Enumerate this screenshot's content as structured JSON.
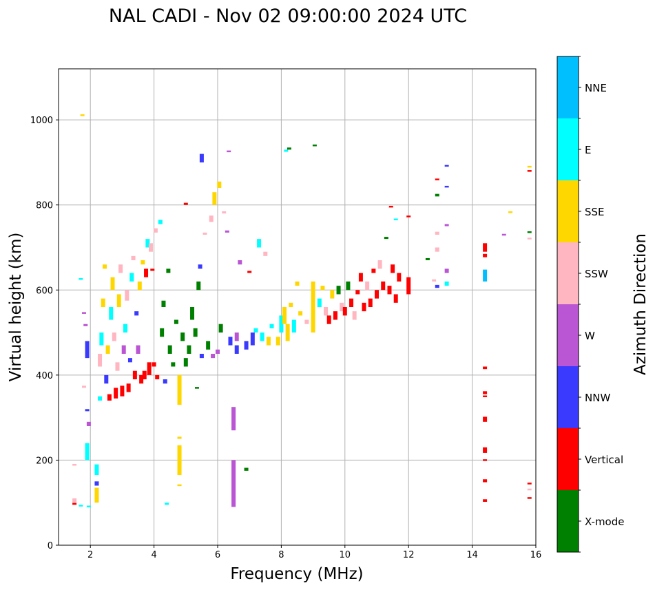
{
  "chart_data": {
    "type": "scatter",
    "title": "NAL CADI - Nov 02 09:00:00 2024 UTC",
    "xlabel": "Frequency (MHz)",
    "ylabel": "Virtual height (km)",
    "xlim": [
      1,
      16
    ],
    "ylim": [
      0,
      1120
    ],
    "xticks": [
      2,
      4,
      6,
      8,
      10,
      12,
      14,
      16
    ],
    "yticks": [
      0,
      200,
      400,
      600,
      800,
      1000
    ],
    "grid": true,
    "colorbar": {
      "label": "Azimuth Direction",
      "placement": "right",
      "categories": [
        "X-mode",
        "Vertical",
        "NNW",
        "W",
        "SSW",
        "SSE",
        "E",
        "NNE"
      ],
      "colors": [
        "#008000",
        "#ff0000",
        "#3a3aff",
        "#ba55d3",
        "#ffb6c1",
        "#ffd700",
        "#00ffff",
        "#00bfff"
      ]
    },
    "segment_format": [
      "freq_mhz",
      "height_low_km",
      "height_high_km",
      "direction_index"
    ],
    "segments": [
      [
        1.5,
        95,
        100,
        1
      ],
      [
        1.5,
        102,
        110,
        4
      ],
      [
        1.5,
        188,
        191,
        4
      ],
      [
        1.7,
        92,
        95,
        6
      ],
      [
        1.75,
        1010,
        1013,
        5
      ],
      [
        1.7,
        625,
        628,
        6
      ],
      [
        1.95,
        90,
        93,
        6
      ],
      [
        1.9,
        200,
        240,
        6
      ],
      [
        1.95,
        280,
        290,
        3
      ],
      [
        1.9,
        315,
        320,
        2
      ],
      [
        1.9,
        440,
        480,
        2
      ],
      [
        1.85,
        515,
        520,
        3
      ],
      [
        1.8,
        545,
        548,
        3
      ],
      [
        1.8,
        370,
        375,
        4
      ],
      [
        2.2,
        100,
        135,
        5
      ],
      [
        2.2,
        140,
        150,
        2
      ],
      [
        2.2,
        165,
        190,
        6
      ],
      [
        2.3,
        340,
        350,
        6
      ],
      [
        2.3,
        420,
        450,
        4
      ],
      [
        2.35,
        470,
        500,
        6
      ],
      [
        2.4,
        560,
        580,
        5
      ],
      [
        2.45,
        650,
        660,
        5
      ],
      [
        2.5,
        380,
        400,
        2
      ],
      [
        2.55,
        450,
        470,
        5
      ],
      [
        2.6,
        340,
        355,
        1
      ],
      [
        2.65,
        530,
        560,
        6
      ],
      [
        2.7,
        600,
        630,
        5
      ],
      [
        2.75,
        480,
        500,
        4
      ],
      [
        2.8,
        345,
        370,
        1
      ],
      [
        2.85,
        410,
        430,
        4
      ],
      [
        2.9,
        560,
        590,
        5
      ],
      [
        2.95,
        640,
        660,
        4
      ],
      [
        3.0,
        350,
        375,
        1
      ],
      [
        3.05,
        450,
        470,
        3
      ],
      [
        3.1,
        500,
        520,
        6
      ],
      [
        3.15,
        575,
        600,
        4
      ],
      [
        3.2,
        360,
        380,
        1
      ],
      [
        3.25,
        430,
        440,
        2
      ],
      [
        3.3,
        620,
        640,
        6
      ],
      [
        3.35,
        670,
        680,
        4
      ],
      [
        3.4,
        390,
        410,
        1
      ],
      [
        3.45,
        540,
        550,
        2
      ],
      [
        3.5,
        450,
        470,
        3
      ],
      [
        3.55,
        600,
        620,
        5
      ],
      [
        3.6,
        380,
        400,
        1
      ],
      [
        3.65,
        660,
        670,
        5
      ],
      [
        3.7,
        390,
        410,
        1
      ],
      [
        3.75,
        630,
        650,
        1
      ],
      [
        3.8,
        700,
        720,
        6
      ],
      [
        3.85,
        400,
        430,
        1
      ],
      [
        3.9,
        690,
        710,
        4
      ],
      [
        3.95,
        645,
        650,
        1
      ],
      [
        4.0,
        420,
        430,
        1
      ],
      [
        4.05,
        735,
        745,
        4
      ],
      [
        4.1,
        390,
        400,
        1
      ],
      [
        4.2,
        755,
        765,
        6
      ],
      [
        4.25,
        490,
        510,
        0
      ],
      [
        4.3,
        560,
        575,
        0
      ],
      [
        4.35,
        380,
        390,
        2
      ],
      [
        4.4,
        95,
        100,
        6
      ],
      [
        4.45,
        640,
        650,
        0
      ],
      [
        4.5,
        450,
        470,
        0
      ],
      [
        4.6,
        420,
        430,
        0
      ],
      [
        4.7,
        520,
        530,
        0
      ],
      [
        4.8,
        330,
        400,
        5
      ],
      [
        4.8,
        140,
        143,
        5
      ],
      [
        4.8,
        165,
        235,
        5
      ],
      [
        4.8,
        250,
        255,
        5
      ],
      [
        4.9,
        480,
        500,
        0
      ],
      [
        5.0,
        420,
        440,
        0
      ],
      [
        5.0,
        800,
        805,
        1
      ],
      [
        5.1,
        450,
        470,
        0
      ],
      [
        5.2,
        530,
        560,
        0
      ],
      [
        5.3,
        490,
        510,
        0
      ],
      [
        5.35,
        370,
        372,
        0
      ],
      [
        5.4,
        600,
        620,
        0
      ],
      [
        5.45,
        650,
        660,
        2
      ],
      [
        5.5,
        440,
        450,
        2
      ],
      [
        5.5,
        900,
        920,
        2
      ],
      [
        5.6,
        730,
        735,
        4
      ],
      [
        5.7,
        460,
        480,
        0
      ],
      [
        5.8,
        760,
        775,
        4
      ],
      [
        5.85,
        440,
        450,
        3
      ],
      [
        5.9,
        800,
        830,
        5
      ],
      [
        6.0,
        450,
        460,
        3
      ],
      [
        6.05,
        840,
        855,
        5
      ],
      [
        6.1,
        500,
        520,
        0
      ],
      [
        6.2,
        780,
        785,
        4
      ],
      [
        6.3,
        735,
        740,
        3
      ],
      [
        6.35,
        925,
        928,
        3
      ],
      [
        6.4,
        470,
        490,
        2
      ],
      [
        6.5,
        90,
        200,
        3
      ],
      [
        6.5,
        270,
        325,
        3
      ],
      [
        6.6,
        450,
        470,
        2
      ],
      [
        6.6,
        480,
        500,
        3
      ],
      [
        6.7,
        660,
        670,
        3
      ],
      [
        6.9,
        175,
        182,
        0
      ],
      [
        6.9,
        460,
        480,
        2
      ],
      [
        7.0,
        640,
        645,
        1
      ],
      [
        7.1,
        470,
        500,
        2
      ],
      [
        7.2,
        500,
        510,
        6
      ],
      [
        7.3,
        700,
        720,
        6
      ],
      [
        7.4,
        480,
        500,
        6
      ],
      [
        7.5,
        680,
        690,
        4
      ],
      [
        7.6,
        470,
        490,
        5
      ],
      [
        7.7,
        510,
        520,
        6
      ],
      [
        7.9,
        470,
        490,
        5
      ],
      [
        8.0,
        500,
        540,
        6
      ],
      [
        8.1,
        520,
        560,
        5
      ],
      [
        8.15,
        925,
        930,
        6
      ],
      [
        8.2,
        480,
        520,
        5
      ],
      [
        8.25,
        930,
        935,
        0
      ],
      [
        8.3,
        560,
        570,
        5
      ],
      [
        8.4,
        500,
        530,
        6
      ],
      [
        8.5,
        610,
        620,
        5
      ],
      [
        8.6,
        540,
        550,
        5
      ],
      [
        8.8,
        520,
        530,
        4
      ],
      [
        9.0,
        500,
        620,
        5
      ],
      [
        9.05,
        940,
        942,
        0
      ],
      [
        9.2,
        560,
        580,
        6
      ],
      [
        9.3,
        600,
        610,
        5
      ],
      [
        9.4,
        540,
        560,
        4
      ],
      [
        9.5,
        520,
        540,
        1
      ],
      [
        9.6,
        580,
        600,
        5
      ],
      [
        9.7,
        530,
        550,
        1
      ],
      [
        9.8,
        590,
        610,
        0
      ],
      [
        9.9,
        550,
        570,
        4
      ],
      [
        10.0,
        540,
        560,
        1
      ],
      [
        10.1,
        600,
        620,
        0
      ],
      [
        10.2,
        560,
        580,
        1
      ],
      [
        10.3,
        530,
        550,
        4
      ],
      [
        10.4,
        590,
        600,
        1
      ],
      [
        10.5,
        620,
        640,
        1
      ],
      [
        10.6,
        550,
        570,
        1
      ],
      [
        10.7,
        600,
        620,
        4
      ],
      [
        10.8,
        560,
        580,
        1
      ],
      [
        10.9,
        640,
        650,
        1
      ],
      [
        11.0,
        580,
        600,
        1
      ],
      [
        11.1,
        650,
        670,
        4
      ],
      [
        11.2,
        600,
        620,
        1
      ],
      [
        11.3,
        720,
        725,
        0
      ],
      [
        11.4,
        590,
        610,
        1
      ],
      [
        11.5,
        640,
        660,
        1
      ],
      [
        11.6,
        570,
        590,
        1
      ],
      [
        11.6,
        765,
        768,
        6
      ],
      [
        11.7,
        620,
        640,
        1
      ],
      [
        11.45,
        795,
        798,
        1
      ],
      [
        12.0,
        590,
        630,
        1
      ],
      [
        12.0,
        772,
        775,
        1
      ],
      [
        12.6,
        670,
        675,
        0
      ],
      [
        12.8,
        620,
        625,
        4
      ],
      [
        12.9,
        605,
        612,
        2
      ],
      [
        12.9,
        690,
        700,
        4
      ],
      [
        12.9,
        730,
        737,
        4
      ],
      [
        12.9,
        820,
        826,
        0
      ],
      [
        12.9,
        858,
        862,
        1
      ],
      [
        13.2,
        610,
        620,
        6
      ],
      [
        13.2,
        640,
        650,
        3
      ],
      [
        13.2,
        750,
        755,
        3
      ],
      [
        13.2,
        842,
        845,
        2
      ],
      [
        13.2,
        890,
        894,
        2
      ],
      [
        14.4,
        102,
        108,
        1
      ],
      [
        14.4,
        148,
        155,
        1
      ],
      [
        14.4,
        198,
        202,
        1
      ],
      [
        14.4,
        217,
        230,
        1
      ],
      [
        14.4,
        290,
        302,
        1
      ],
      [
        14.4,
        348,
        352,
        1
      ],
      [
        14.4,
        355,
        362,
        1
      ],
      [
        14.4,
        414,
        420,
        1
      ],
      [
        14.4,
        620,
        648,
        7
      ],
      [
        14.4,
        677,
        685,
        1
      ],
      [
        14.4,
        690,
        710,
        1
      ],
      [
        15.0,
        728,
        732,
        3
      ],
      [
        15.2,
        782,
        785,
        5
      ],
      [
        15.8,
        110,
        113,
        1
      ],
      [
        15.8,
        130,
        133,
        4
      ],
      [
        15.8,
        143,
        147,
        1
      ],
      [
        15.8,
        720,
        723,
        4
      ],
      [
        15.8,
        735,
        738,
        0
      ],
      [
        15.8,
        878,
        882,
        1
      ],
      [
        15.8,
        888,
        892,
        5
      ]
    ]
  }
}
